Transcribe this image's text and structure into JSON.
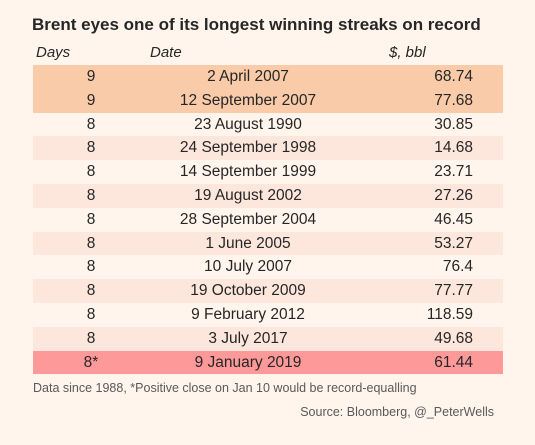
{
  "chart_data": {
    "type": "table",
    "title": "Brent eyes one of its longest winning streaks on record",
    "columns": [
      "Days",
      "Date",
      "$, bbl"
    ],
    "rows": [
      {
        "days": "9",
        "date": "2 April 2007",
        "price": "68.74",
        "highlight": "orange"
      },
      {
        "days": "9",
        "date": "12 September 2007",
        "price": "77.68",
        "highlight": "orange"
      },
      {
        "days": "8",
        "date": "23 August 1990",
        "price": "30.85",
        "highlight": ""
      },
      {
        "days": "8",
        "date": "24 September 1998",
        "price": "14.68",
        "highlight": ""
      },
      {
        "days": "8",
        "date": "14 September 1999",
        "price": "23.71",
        "highlight": ""
      },
      {
        "days": "8",
        "date": "19 August 2002",
        "price": "27.26",
        "highlight": ""
      },
      {
        "days": "8",
        "date": "28 September 2004",
        "price": "46.45",
        "highlight": ""
      },
      {
        "days": "8",
        "date": "1 June 2005",
        "price": "53.27",
        "highlight": ""
      },
      {
        "days": "8",
        "date": "10 July 2007",
        "price": "76.4",
        "highlight": ""
      },
      {
        "days": "8",
        "date": "19 October 2009",
        "price": "77.77",
        "highlight": ""
      },
      {
        "days": "8",
        "date": "9 February 2012",
        "price": "118.59",
        "highlight": ""
      },
      {
        "days": "8",
        "date": "3 July 2017",
        "price": "49.68",
        "highlight": ""
      },
      {
        "days": "8*",
        "date": "9 January 2019",
        "price": "61.44",
        "highlight": "red"
      }
    ],
    "footnote": "Data since 1988, *Positive close on Jan 10 would be record-equalling",
    "source": "Source: Bloomberg, @_PeterWells"
  },
  "colors": {
    "background": "#fff5ec",
    "alt_row": "#fde7dc",
    "highlight_orange": "#f9cba9",
    "highlight_red": "#fe999a"
  }
}
